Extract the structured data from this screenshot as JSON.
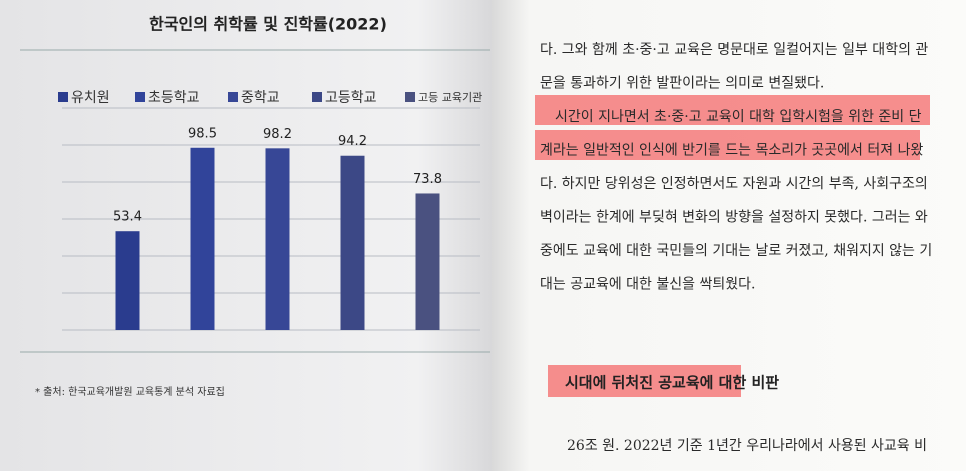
{
  "chart_data": {
    "type": "bar",
    "title": "한국인의 취학률 및 진학률(2022)",
    "categories": [
      "유치원",
      "초등학교",
      "중학교",
      "고등학교",
      "고등 교육기관"
    ],
    "values": [
      53.4,
      98.5,
      98.2,
      94.2,
      73.8
    ],
    "colors": [
      "#2a3c8e",
      "#31449a",
      "#374796",
      "#3c4886",
      "#4a5180"
    ],
    "ylim": [
      0,
      120
    ],
    "yticks": [
      0,
      20,
      40,
      60,
      80,
      100,
      120
    ],
    "grid": true,
    "legend": "top"
  },
  "source": "* 출처: 한국교육개발원 교육통계 분석 자료집",
  "body": {
    "lines": [
      "다. 그와 함께 초·중·고 교육은 명문대로 일컬어지는 일부 대학의 관",
      "문을 통과하기 위한 발판이라는 의미로 변질됐다.",
      "시간이 지나면서 초·중·고 교육이 대학 입학시험을 위한 준비 단",
      "계라는 일반적인 인식에 반기를 드는 목소리가 곳곳에서 터져 나왔",
      "다. 하지만 당위성은 인정하면서도 자원과 시간의 부족, 사회구조의",
      "벽이라는 한계에 부딪혀 변화의 방향을 설정하지 못했다. 그러는 와",
      "중에도 교육에 대한 국민들의 기대는 날로 커졌고, 채워지지 않는 기",
      "대는 공교육에 대한 불신을 싹틔웠다."
    ],
    "heading": "시대에 뒤처진 공교육에 대한 비판",
    "after": [
      "26조 원. 2022년 기준 1년간 우리나라에서 사용된 사교육 비"
    ]
  }
}
